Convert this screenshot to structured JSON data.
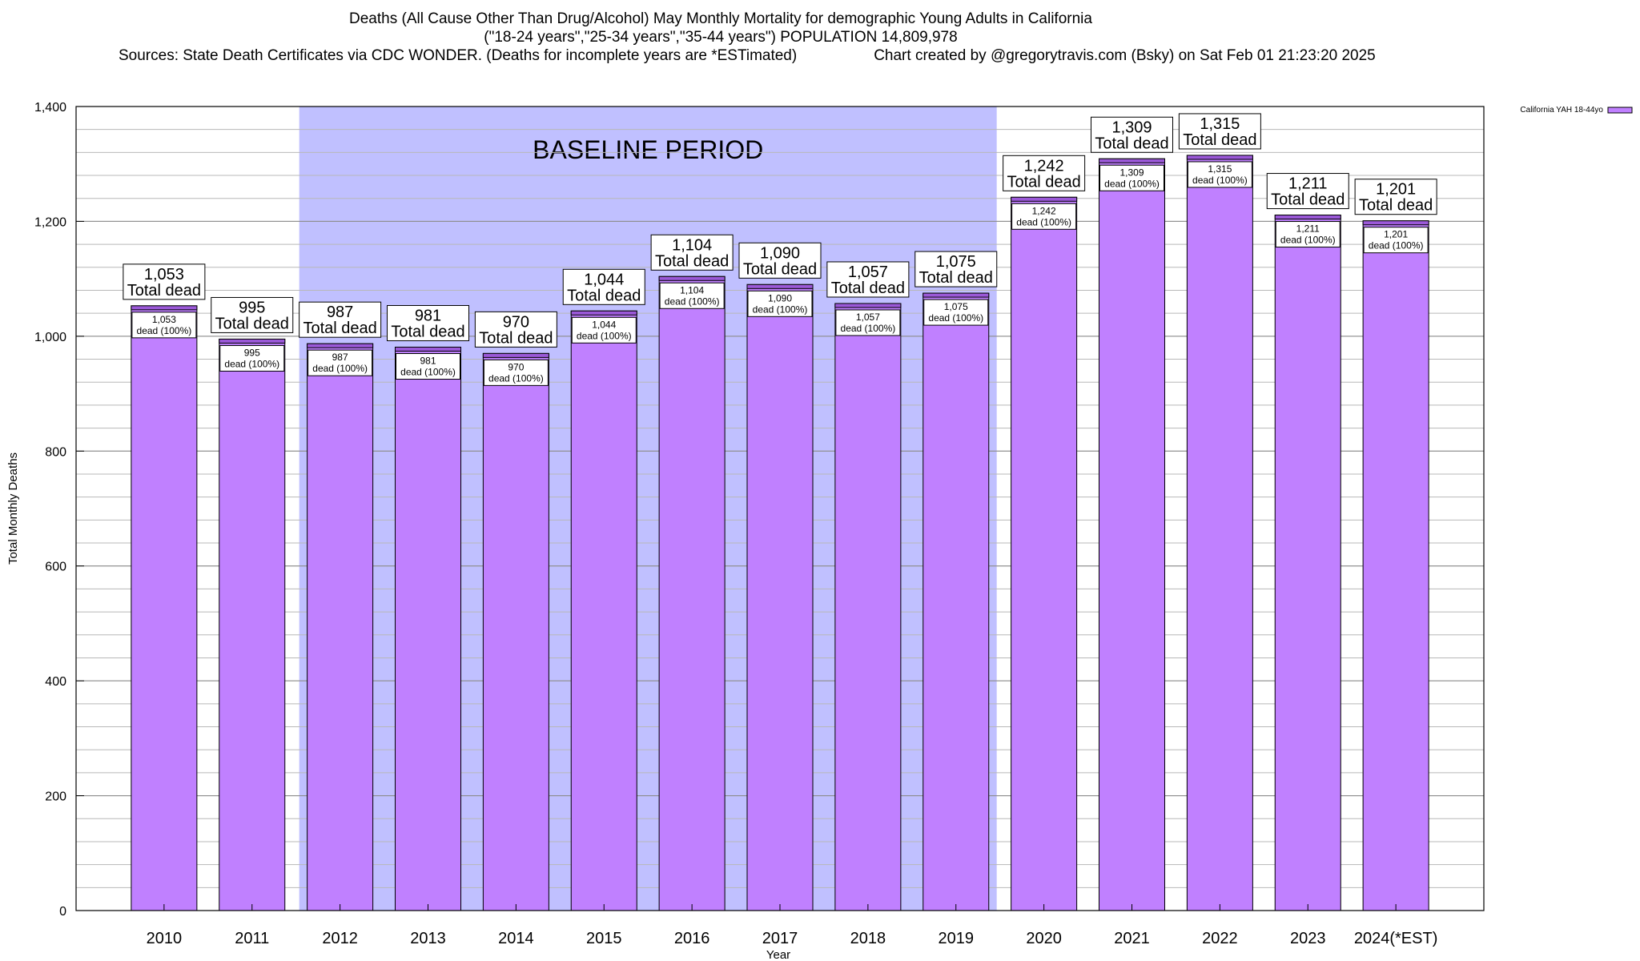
{
  "title": {
    "line1": "Deaths (All Cause Other Than Drug/Alcohol) May Monthly Mortality for demographic Young Adults in California",
    "line2": "(\"18-24 years\",\"25-34 years\",\"35-44 years\") POPULATION 14,809,978",
    "sources": "Sources: State Death Certificates via CDC WONDER. (Deaths for incomplete years are *ESTimated)",
    "credit": "Chart created by @gregorytravis.com (Bsky) on Sat Feb 01 21:23:20 2025"
  },
  "colors": {
    "bar": "#c080ff",
    "bar_top_band": "#9b59d8",
    "baseline_band": "#c0c0ff",
    "grid": "#b8b8b8"
  },
  "chart_data": {
    "type": "bar",
    "categories": [
      "2010",
      "2011",
      "2012",
      "2013",
      "2014",
      "2015",
      "2016",
      "2017",
      "2018",
      "2019",
      "2020",
      "2021",
      "2022",
      "2023",
      "2024(*EST)"
    ],
    "series": [
      {
        "name": "California YAH 18-44yo",
        "values": [
          1053,
          995,
          987,
          981,
          970,
          1044,
          1104,
          1090,
          1057,
          1075,
          1242,
          1309,
          1315,
          1211,
          1201
        ]
      }
    ],
    "value_labels": [
      "1,053",
      "995",
      "987",
      "981",
      "970",
      "1,044",
      "1,104",
      "1,090",
      "1,057",
      "1,075",
      "1,242",
      "1,309",
      "1,315",
      "1,211",
      "1,201"
    ],
    "label_total_suffix": "Total dead",
    "label_inner_suffix": "dead (100%)",
    "xlabel": "Year",
    "ylabel": "Total Monthly Deaths",
    "ylim": [
      0,
      1400
    ],
    "yticks": [
      0,
      200,
      400,
      600,
      800,
      1000,
      1200,
      1400
    ],
    "ytick_labels": [
      "0",
      "200",
      "400",
      "600",
      "800",
      "1,000",
      "1,200",
      "1,400"
    ],
    "minor_tick_step": 40,
    "grid": true,
    "legend_position": "top-right outside",
    "baseline": {
      "label": "BASELINE PERIOD",
      "from": "2012",
      "to": "2019"
    }
  }
}
